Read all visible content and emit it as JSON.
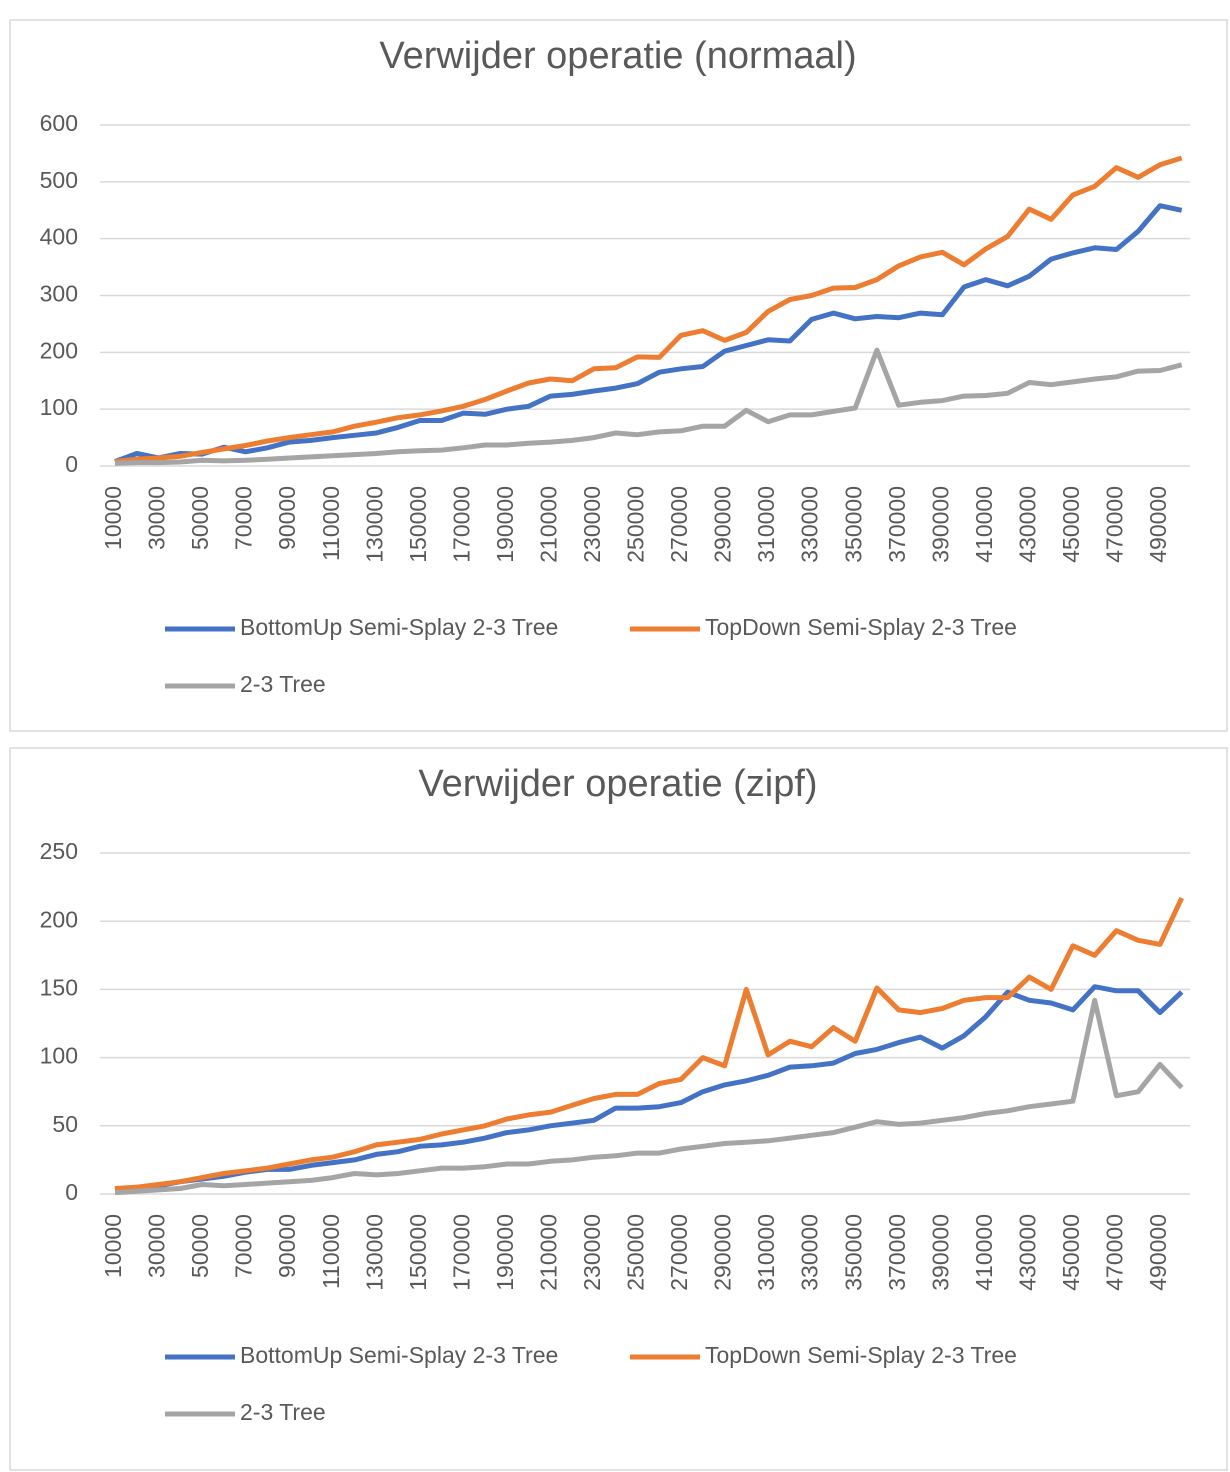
{
  "chart_data": [
    {
      "type": "line",
      "title": "Verwijder operatie (normaal)",
      "categories": [
        10000,
        null,
        30000,
        null,
        50000,
        null,
        70000,
        null,
        90000,
        null,
        110000,
        null,
        130000,
        null,
        150000,
        null,
        170000,
        null,
        190000,
        null,
        210000,
        null,
        230000,
        null,
        250000,
        null,
        270000,
        null,
        290000,
        null,
        310000,
        null,
        330000,
        null,
        350000,
        null,
        370000,
        null,
        390000,
        null,
        410000,
        null,
        430000,
        null,
        450000,
        null,
        470000,
        null,
        490000,
        null
      ],
      "series": [
        {
          "name": "BottomUp Semi-Splay 2-3 Tree",
          "color": "#4472c4",
          "values": [
            8,
            22,
            14,
            22,
            21,
            33,
            25,
            32,
            42,
            45,
            50,
            54,
            58,
            68,
            80,
            80,
            93,
            91,
            100,
            105,
            123,
            126,
            132,
            137,
            145,
            165,
            171,
            175,
            202,
            212,
            222,
            220,
            258,
            269,
            259,
            263,
            261,
            269,
            266,
            315,
            328,
            317,
            334,
            364,
            375,
            384,
            381,
            413,
            458,
            450
          ]
        },
        {
          "name": "TopDown Semi-Splay 2-3 Tree",
          "color": "#ed7d31",
          "values": [
            8,
            12,
            14,
            17,
            24,
            30,
            36,
            44,
            50,
            55,
            60,
            70,
            77,
            85,
            90,
            97,
            105,
            117,
            132,
            146,
            153,
            150,
            171,
            173,
            192,
            191,
            230,
            238,
            221,
            235,
            272,
            293,
            300,
            313,
            314,
            328,
            352,
            368,
            376,
            354,
            382,
            404,
            452,
            434,
            477,
            492,
            525,
            508,
            530,
            542
          ]
        },
        {
          "name": "2-3 Tree",
          "color": "#a5a5a5",
          "values": [
            5,
            6,
            6,
            7,
            10,
            9,
            10,
            12,
            14,
            16,
            18,
            20,
            22,
            25,
            27,
            28,
            32,
            37,
            37,
            40,
            42,
            45,
            50,
            58,
            55,
            60,
            62,
            70,
            70,
            98,
            78,
            90,
            90,
            96,
            102,
            204,
            107,
            112,
            115,
            123,
            124,
            128,
            147,
            143,
            148,
            153,
            157,
            167,
            168,
            178
          ]
        }
      ],
      "ylim": [
        0,
        600
      ],
      "yticks": [
        0,
        100,
        200,
        300,
        400,
        500,
        600
      ],
      "grid": true
    },
    {
      "type": "line",
      "title": "Verwijder operatie (zipf)",
      "categories": [
        10000,
        null,
        30000,
        null,
        50000,
        null,
        70000,
        null,
        90000,
        null,
        110000,
        null,
        130000,
        null,
        150000,
        null,
        170000,
        null,
        190000,
        null,
        210000,
        null,
        230000,
        null,
        250000,
        null,
        270000,
        null,
        290000,
        null,
        310000,
        null,
        330000,
        null,
        350000,
        null,
        370000,
        null,
        390000,
        null,
        410000,
        null,
        430000,
        null,
        450000,
        null,
        470000,
        null,
        490000,
        null
      ],
      "series": [
        {
          "name": "BottomUp Semi-Splay 2-3 Tree",
          "color": "#4472c4",
          "values": [
            3,
            5,
            6,
            9,
            11,
            13,
            16,
            18,
            18,
            21,
            23,
            25,
            29,
            31,
            35,
            36,
            38,
            41,
            45,
            47,
            50,
            52,
            54,
            63,
            63,
            64,
            67,
            75,
            80,
            83,
            87,
            93,
            94,
            96,
            103,
            106,
            111,
            115,
            107,
            116,
            130,
            148,
            142,
            140,
            135,
            152,
            149,
            149,
            133,
            148
          ]
        },
        {
          "name": "TopDown Semi-Splay 2-3 Tree",
          "color": "#ed7d31",
          "values": [
            4,
            5,
            7,
            9,
            12,
            15,
            17,
            19,
            22,
            25,
            27,
            31,
            36,
            38,
            40,
            44,
            47,
            50,
            55,
            58,
            60,
            65,
            70,
            73,
            73,
            81,
            84,
            100,
            94,
            150,
            102,
            112,
            108,
            122,
            112,
            151,
            135,
            133,
            136,
            142,
            144,
            144,
            159,
            150,
            182,
            175,
            193,
            186,
            183,
            217
          ]
        },
        {
          "name": "2-3 Tree",
          "color": "#a5a5a5",
          "values": [
            1,
            2,
            3,
            4,
            7,
            6,
            7,
            8,
            9,
            10,
            12,
            15,
            14,
            15,
            17,
            19,
            19,
            20,
            22,
            22,
            24,
            25,
            27,
            28,
            30,
            30,
            33,
            35,
            37,
            38,
            39,
            41,
            43,
            45,
            49,
            53,
            51,
            52,
            54,
            56,
            59,
            61,
            64,
            66,
            68,
            142,
            72,
            75,
            95,
            78
          ]
        }
      ],
      "ylim": [
        0,
        250
      ],
      "yticks": [
        0,
        50,
        100,
        150,
        200,
        250
      ],
      "grid": true
    }
  ]
}
